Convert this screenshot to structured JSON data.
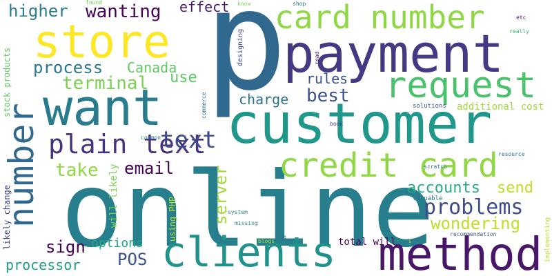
{
  "words": [
    {
      "text": "p",
      "color": "#31688e"
    },
    {
      "text": "online",
      "color": "#277f8e"
    },
    {
      "text": "customer",
      "color": "#1f978b"
    },
    {
      "text": "payment",
      "color": "#443983"
    },
    {
      "text": "want",
      "color": "#287c8e"
    },
    {
      "text": "store",
      "color": "#fde725"
    },
    {
      "text": "number",
      "color": "#31688e"
    },
    {
      "text": "card number",
      "color": "#8fd744"
    },
    {
      "text": "method",
      "color": "#481668"
    },
    {
      "text": "clients",
      "color": "#21918c"
    },
    {
      "text": "request",
      "color": "#4ac16d"
    },
    {
      "text": "credit card",
      "color": "#8fd744"
    },
    {
      "text": "plain text",
      "color": "#46327e"
    },
    {
      "text": "text",
      "color": "#3e4a89"
    },
    {
      "text": "problems",
      "color": "#3e4a89"
    },
    {
      "text": "wanting",
      "color": "#440154"
    },
    {
      "text": "higher",
      "color": "#287c8e"
    },
    {
      "text": "effect",
      "color": "#481a6c"
    },
    {
      "text": "process",
      "color": "#2a788e"
    },
    {
      "text": "terminal",
      "color": "#7ad151"
    },
    {
      "text": "Canada",
      "color": "#5ec962"
    },
    {
      "text": "use",
      "color": "#5ec962"
    },
    {
      "text": "rules",
      "color": "#3b528b"
    },
    {
      "text": "best",
      "color": "#3b528b"
    },
    {
      "text": "charge",
      "color": "#2c728e"
    },
    {
      "text": "email",
      "color": "#440154"
    },
    {
      "text": "take",
      "color": "#90d743"
    },
    {
      "text": "server",
      "color": "#a0da39"
    },
    {
      "text": "accounts",
      "color": "#27ad81"
    },
    {
      "text": "send",
      "color": "#bddf26"
    },
    {
      "text": "wondering",
      "color": "#bddf26"
    },
    {
      "text": "sign",
      "color": "#440154"
    },
    {
      "text": "options",
      "color": "#22a884"
    },
    {
      "text": "POS",
      "color": "#3b528b"
    },
    {
      "text": "processor",
      "color": "#1f9e89"
    },
    {
      "text": "total will",
      "color": "#440154"
    },
    {
      "text": "additional cost",
      "color": "#a0da39"
    },
    {
      "text": "solutions",
      "color": "#39568c"
    },
    {
      "text": "stock products",
      "color": "#5ec962"
    },
    {
      "text": "likely change",
      "color": "#404688"
    },
    {
      "text": "will likely",
      "color": "#7ad151"
    },
    {
      "text": "using PHP",
      "color": "#b5de2b"
    },
    {
      "text": "designing",
      "color": "#404688"
    },
    {
      "text": "commerce",
      "color": "#2c728e"
    },
    {
      "text": "implementing",
      "color": "#bddf26"
    },
    {
      "text": "read",
      "color": "#481467"
    },
    {
      "text": "know",
      "color": "#7ad151"
    },
    {
      "text": "found",
      "color": "#6ccd5a"
    },
    {
      "text": "shop",
      "color": "#2c728e"
    },
    {
      "text": "etc",
      "color": "#471365"
    },
    {
      "text": "really",
      "color": "#35b779"
    },
    {
      "text": "book",
      "color": "#414487"
    },
    {
      "text": "common",
      "color": "#2a788e"
    },
    {
      "text": "resource",
      "color": "#2c728e"
    },
    {
      "text": "scratch",
      "color": "#2a788e"
    },
    {
      "text": "valuable",
      "color": "#2c728e"
    },
    {
      "text": "system",
      "color": "#25838e"
    },
    {
      "text": "missing",
      "color": "#25838e"
    },
    {
      "text": "blogs",
      "color": "#a5db36"
    },
    {
      "text": "recommendation",
      "color": "#38598c"
    },
    {
      "text": "s",
      "color": "#a5db36"
    },
    {
      "text": "e",
      "color": "#3b528b"
    }
  ]
}
